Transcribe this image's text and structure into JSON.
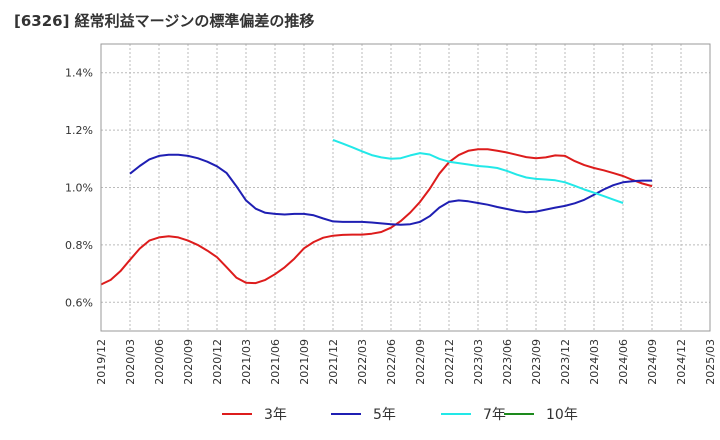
{
  "chart_data": {
    "type": "line",
    "title": "[6326]  経常利益マージンの標準偏差の推移",
    "xlabel": "",
    "ylabel": "",
    "ylim": [
      0.5,
      1.5
    ],
    "y_ticks": [
      "0.6%",
      "0.8%",
      "1.0%",
      "1.2%",
      "1.4%"
    ],
    "y_tick_values": [
      0.6,
      0.8,
      1.0,
      1.2,
      1.4
    ],
    "x_ticks": [
      "2019/12",
      "2020/03",
      "2020/06",
      "2020/09",
      "2020/12",
      "2021/03",
      "2021/06",
      "2021/09",
      "2021/12",
      "2022/03",
      "2022/06",
      "2022/09",
      "2022/12",
      "2023/03",
      "2023/06",
      "2023/09",
      "2023/12",
      "2024/03",
      "2024/06",
      "2024/09",
      "2024/12",
      "2025/03"
    ],
    "grid": true,
    "legend_position": "bottom",
    "series": [
      {
        "name": "3年",
        "color": "#dd1c1c",
        "points": [
          [
            "2019/12",
            0.662
          ],
          [
            "2020/01",
            0.678
          ],
          [
            "2020/02",
            0.708
          ],
          [
            "2020/03",
            0.748
          ],
          [
            "2020/04",
            0.787
          ],
          [
            "2020/05",
            0.815
          ],
          [
            "2020/06",
            0.826
          ],
          [
            "2020/07",
            0.83
          ],
          [
            "2020/08",
            0.826
          ],
          [
            "2020/09",
            0.815
          ],
          [
            "2020/10",
            0.8
          ],
          [
            "2020/11",
            0.78
          ],
          [
            "2020/12",
            0.757
          ],
          [
            "2021/01",
            0.722
          ],
          [
            "2021/02",
            0.686
          ],
          [
            "2021/03",
            0.668
          ],
          [
            "2021/04",
            0.667
          ],
          [
            "2021/05",
            0.678
          ],
          [
            "2021/06",
            0.698
          ],
          [
            "2021/07",
            0.722
          ],
          [
            "2021/08",
            0.752
          ],
          [
            "2021/09",
            0.788
          ],
          [
            "2021/10",
            0.81
          ],
          [
            "2021/11",
            0.825
          ],
          [
            "2021/12",
            0.832
          ],
          [
            "2022/01",
            0.835
          ],
          [
            "2022/02",
            0.836
          ],
          [
            "2022/03",
            0.836
          ],
          [
            "2022/04",
            0.839
          ],
          [
            "2022/05",
            0.845
          ],
          [
            "2022/06",
            0.86
          ],
          [
            "2022/07",
            0.883
          ],
          [
            "2022/08",
            0.913
          ],
          [
            "2022/09",
            0.95
          ],
          [
            "2022/10",
            0.995
          ],
          [
            "2022/11",
            1.048
          ],
          [
            "2022/12",
            1.088
          ],
          [
            "2023/01",
            1.113
          ],
          [
            "2023/02",
            1.128
          ],
          [
            "2023/03",
            1.133
          ],
          [
            "2023/04",
            1.133
          ],
          [
            "2023/05",
            1.128
          ],
          [
            "2023/06",
            1.122
          ],
          [
            "2023/07",
            1.114
          ],
          [
            "2023/08",
            1.106
          ],
          [
            "2023/09",
            1.102
          ],
          [
            "2023/10",
            1.105
          ],
          [
            "2023/11",
            1.112
          ],
          [
            "2023/12",
            1.11
          ],
          [
            "2024/01",
            1.092
          ],
          [
            "2024/02",
            1.078
          ],
          [
            "2024/03",
            1.068
          ],
          [
            "2024/04",
            1.06
          ],
          [
            "2024/05",
            1.05
          ],
          [
            "2024/06",
            1.04
          ],
          [
            "2024/07",
            1.026
          ],
          [
            "2024/08",
            1.014
          ],
          [
            "2024/09",
            1.005
          ]
        ]
      },
      {
        "name": "5年",
        "color": "#1f1fb3",
        "points": [
          [
            "2020/03",
            1.048
          ],
          [
            "2020/04",
            1.075
          ],
          [
            "2020/05",
            1.098
          ],
          [
            "2020/06",
            1.11
          ],
          [
            "2020/07",
            1.114
          ],
          [
            "2020/08",
            1.114
          ],
          [
            "2020/09",
            1.11
          ],
          [
            "2020/10",
            1.102
          ],
          [
            "2020/11",
            1.09
          ],
          [
            "2020/12",
            1.074
          ],
          [
            "2021/01",
            1.05
          ],
          [
            "2021/02",
            1.005
          ],
          [
            "2021/03",
            0.955
          ],
          [
            "2021/04",
            0.926
          ],
          [
            "2021/05",
            0.912
          ],
          [
            "2021/06",
            0.908
          ],
          [
            "2021/07",
            0.906
          ],
          [
            "2021/08",
            0.908
          ],
          [
            "2021/09",
            0.908
          ],
          [
            "2021/10",
            0.903
          ],
          [
            "2021/11",
            0.892
          ],
          [
            "2021/12",
            0.882
          ],
          [
            "2022/01",
            0.88
          ],
          [
            "2022/02",
            0.88
          ],
          [
            "2022/03",
            0.88
          ],
          [
            "2022/04",
            0.878
          ],
          [
            "2022/05",
            0.875
          ],
          [
            "2022/06",
            0.872
          ],
          [
            "2022/07",
            0.87
          ],
          [
            "2022/08",
            0.872
          ],
          [
            "2022/09",
            0.88
          ],
          [
            "2022/10",
            0.9
          ],
          [
            "2022/11",
            0.93
          ],
          [
            "2022/12",
            0.95
          ],
          [
            "2023/01",
            0.955
          ],
          [
            "2023/02",
            0.952
          ],
          [
            "2023/03",
            0.946
          ],
          [
            "2023/04",
            0.94
          ],
          [
            "2023/05",
            0.932
          ],
          [
            "2023/06",
            0.925
          ],
          [
            "2023/07",
            0.918
          ],
          [
            "2023/08",
            0.914
          ],
          [
            "2023/09",
            0.916
          ],
          [
            "2023/10",
            0.923
          ],
          [
            "2023/11",
            0.93
          ],
          [
            "2023/12",
            0.936
          ],
          [
            "2024/01",
            0.945
          ],
          [
            "2024/02",
            0.957
          ],
          [
            "2024/03",
            0.975
          ],
          [
            "2024/04",
            0.993
          ],
          [
            "2024/05",
            1.008
          ],
          [
            "2024/06",
            1.018
          ],
          [
            "2024/07",
            1.022
          ],
          [
            "2024/08",
            1.024
          ],
          [
            "2024/09",
            1.024
          ]
        ]
      },
      {
        "name": "7年",
        "color": "#22e8e8",
        "points": [
          [
            "2021/12",
            1.166
          ],
          [
            "2022/01",
            1.153
          ],
          [
            "2022/02",
            1.14
          ],
          [
            "2022/03",
            1.126
          ],
          [
            "2022/04",
            1.113
          ],
          [
            "2022/05",
            1.105
          ],
          [
            "2022/06",
            1.1
          ],
          [
            "2022/07",
            1.102
          ],
          [
            "2022/08",
            1.112
          ],
          [
            "2022/09",
            1.12
          ],
          [
            "2022/10",
            1.115
          ],
          [
            "2022/11",
            1.1
          ],
          [
            "2022/12",
            1.09
          ],
          [
            "2023/01",
            1.085
          ],
          [
            "2023/02",
            1.08
          ],
          [
            "2023/03",
            1.075
          ],
          [
            "2023/04",
            1.072
          ],
          [
            "2023/05",
            1.068
          ],
          [
            "2023/06",
            1.058
          ],
          [
            "2023/07",
            1.045
          ],
          [
            "2023/08",
            1.035
          ],
          [
            "2023/09",
            1.03
          ],
          [
            "2023/10",
            1.028
          ],
          [
            "2023/11",
            1.025
          ],
          [
            "2023/12",
            1.018
          ],
          [
            "2024/01",
            1.006
          ],
          [
            "2024/02",
            0.993
          ],
          [
            "2024/03",
            0.982
          ],
          [
            "2024/04",
            0.97
          ],
          [
            "2024/05",
            0.958
          ],
          [
            "2024/06",
            0.946
          ]
        ]
      },
      {
        "name": "10年",
        "color": "#1d8a1d",
        "points": []
      }
    ]
  }
}
